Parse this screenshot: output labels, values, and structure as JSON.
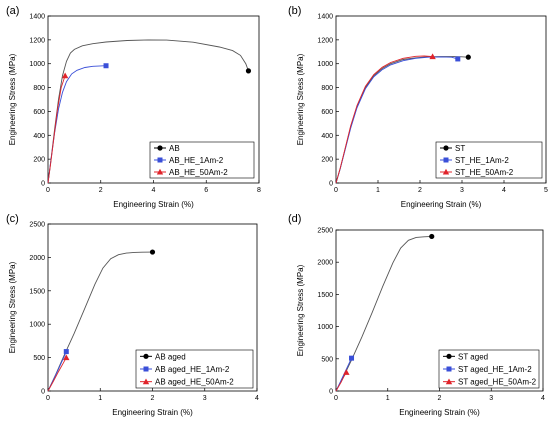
{
  "chart_data": [
    {
      "type": "line",
      "panel_label": "(a)",
      "xlabel": "Engineering Strain (%)",
      "ylabel": "Engineering Stress (MPa)",
      "xlim": [
        0,
        8
      ],
      "ylim": [
        0,
        1400
      ],
      "xticks": [
        0,
        2,
        4,
        6,
        8
      ],
      "yticks": [
        0,
        200,
        400,
        600,
        800,
        1000,
        1200,
        1400
      ],
      "legend_position": "bottom-right",
      "series": [
        {
          "name": "AB",
          "color": "#000000",
          "marker": "circle",
          "x": [
            0,
            0.1,
            0.25,
            0.4,
            0.55,
            0.7,
            0.85,
            1.0,
            1.3,
            1.7,
            2.2,
            3.0,
            3.8,
            4.5,
            5.5,
            6.5,
            7.0,
            7.3,
            7.5,
            7.6
          ],
          "y": [
            0,
            170,
            450,
            700,
            900,
            1020,
            1090,
            1120,
            1150,
            1168,
            1182,
            1195,
            1200,
            1198,
            1180,
            1140,
            1110,
            1070,
            1000,
            940
          ],
          "end": [
            7.6,
            940
          ]
        },
        {
          "name": "AB_HE_1Am-2",
          "color": "#3a4fd8",
          "marker": "square",
          "x": [
            0,
            0.1,
            0.25,
            0.4,
            0.55,
            0.7,
            0.9,
            1.1,
            1.4,
            1.7,
            2.0,
            2.2
          ],
          "y": [
            0,
            170,
            420,
            620,
            760,
            850,
            915,
            945,
            968,
            978,
            982,
            983
          ],
          "end": [
            2.2,
            983
          ]
        },
        {
          "name": "AB_HE_50Am-2",
          "color": "#e0242b",
          "marker": "triangle",
          "x": [
            0,
            0.1,
            0.2,
            0.35,
            0.5,
            0.65
          ],
          "y": [
            0,
            160,
            340,
            600,
            800,
            900
          ],
          "end": [
            0.65,
            900
          ]
        }
      ]
    },
    {
      "type": "line",
      "panel_label": "(b)",
      "xlabel": "Engineering Strain (%)",
      "ylabel": "Engineering Stress (MPa)",
      "xlim": [
        0,
        5
      ],
      "ylim": [
        0,
        1400
      ],
      "xticks": [
        0,
        1,
        2,
        3,
        4,
        5
      ],
      "yticks": [
        0,
        200,
        400,
        600,
        800,
        1000,
        1200,
        1400
      ],
      "legend_position": "bottom-right",
      "series": [
        {
          "name": "ST",
          "color": "#000000",
          "marker": "circle",
          "x": [
            0,
            0.1,
            0.2,
            0.35,
            0.5,
            0.7,
            0.9,
            1.1,
            1.3,
            1.6,
            1.9,
            2.2,
            2.5,
            2.8,
            3.0,
            3.15
          ],
          "y": [
            0,
            120,
            260,
            470,
            640,
            800,
            900,
            960,
            1000,
            1035,
            1050,
            1058,
            1060,
            1060,
            1058,
            1055
          ],
          "end": [
            3.15,
            1055
          ]
        },
        {
          "name": "ST_HE_1Am-2",
          "color": "#3a4fd8",
          "marker": "square",
          "x": [
            0,
            0.1,
            0.2,
            0.35,
            0.5,
            0.7,
            0.9,
            1.1,
            1.3,
            1.6,
            1.9,
            2.2,
            2.5,
            2.75,
            2.9
          ],
          "y": [
            0,
            120,
            255,
            460,
            630,
            790,
            890,
            950,
            990,
            1025,
            1045,
            1055,
            1057,
            1055,
            1040
          ],
          "end": [
            2.9,
            1040
          ]
        },
        {
          "name": "ST_HE_50Am-2",
          "color": "#e0242b",
          "marker": "triangle",
          "x": [
            0,
            0.1,
            0.2,
            0.35,
            0.5,
            0.7,
            0.9,
            1.1,
            1.3,
            1.6,
            1.9,
            2.1,
            2.3
          ],
          "y": [
            0,
            125,
            265,
            480,
            650,
            810,
            910,
            970,
            1010,
            1045,
            1062,
            1065,
            1060
          ],
          "end": [
            2.3,
            1060
          ]
        }
      ]
    },
    {
      "type": "line",
      "panel_label": "(c)",
      "xlabel": "Engineering Strain (%)",
      "ylabel": "Engineering Stress (MPa)",
      "xlim": [
        0,
        4
      ],
      "ylim": [
        0,
        2500
      ],
      "xticks": [
        0,
        1,
        2,
        3,
        4
      ],
      "yticks": [
        0,
        500,
        1000,
        1500,
        2000,
        2500
      ],
      "legend_position": "bottom-right",
      "series": [
        {
          "name": "AB aged",
          "color": "#000000",
          "marker": "circle",
          "x": [
            0,
            0.15,
            0.3,
            0.5,
            0.7,
            0.9,
            1.05,
            1.2,
            1.35,
            1.5,
            1.65,
            1.8,
            2.0
          ],
          "y": [
            0,
            250,
            520,
            860,
            1230,
            1600,
            1840,
            1980,
            2040,
            2065,
            2075,
            2078,
            2080
          ],
          "end": [
            2.0,
            2080
          ]
        },
        {
          "name": "AB aged_HE_1Am-2",
          "color": "#3a4fd8",
          "marker": "square",
          "x": [
            0,
            0.1,
            0.2,
            0.3,
            0.35
          ],
          "y": [
            0,
            160,
            330,
            500,
            590
          ],
          "end": [
            0.35,
            590
          ]
        },
        {
          "name": "AB aged_HE_50Am-2",
          "color": "#e0242b",
          "marker": "triangle",
          "x": [
            0,
            0.1,
            0.2,
            0.3,
            0.35
          ],
          "y": [
            0,
            140,
            290,
            430,
            500
          ],
          "end": [
            0.35,
            500
          ]
        }
      ]
    },
    {
      "type": "line",
      "panel_label": "(d)",
      "xlabel": "Engineering Strain (%)",
      "ylabel": "Engineering Stress (MPa)",
      "xlim": [
        0,
        4
      ],
      "ylim": [
        0,
        2500
      ],
      "xticks": [
        0,
        1,
        2,
        3,
        4
      ],
      "yticks": [
        0,
        500,
        1000,
        1500,
        2000,
        2500
      ],
      "legend_position": "bottom-right",
      "series": [
        {
          "name": "ST aged",
          "color": "#000000",
          "marker": "circle",
          "x": [
            0,
            0.15,
            0.3,
            0.5,
            0.7,
            0.9,
            1.1,
            1.25,
            1.4,
            1.55,
            1.7,
            1.85
          ],
          "y": [
            0,
            230,
            480,
            840,
            1220,
            1620,
            1990,
            2220,
            2340,
            2385,
            2395,
            2400
          ],
          "end": [
            1.85,
            2400
          ]
        },
        {
          "name": "ST aged_HE_1Am-2",
          "color": "#3a4fd8",
          "marker": "square",
          "x": [
            0,
            0.1,
            0.2,
            0.3
          ],
          "y": [
            0,
            170,
            340,
            510
          ],
          "end": [
            0.3,
            510
          ]
        },
        {
          "name": "ST aged_HE_50Am-2",
          "color": "#e0242b",
          "marker": "triangle",
          "x": [
            0,
            0.05,
            0.1,
            0.15,
            0.2
          ],
          "y": [
            0,
            70,
            140,
            220,
            290
          ],
          "end": [
            0.2,
            290
          ]
        }
      ]
    }
  ]
}
